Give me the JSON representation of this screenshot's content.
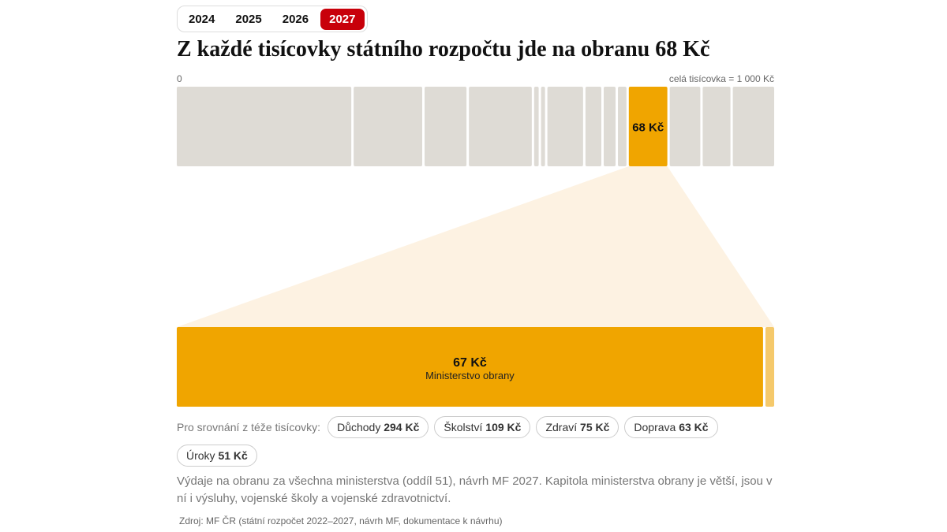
{
  "year_tabs": [
    "2024",
    "2025",
    "2026",
    "2027"
  ],
  "active_year": 3,
  "title": "Z každé tisícovky státního rozpočtu jde na obranu 68 Kč",
  "scale": {
    "start": 0,
    "end_label": "celá tisícovka = 1 000 Kč",
    "max": 1000
  },
  "segments": [
    308,
    121,
    74,
    111,
    8,
    7,
    63,
    28,
    21,
    15,
    68,
    54,
    49,
    73
  ],
  "highlight": {
    "index": 10,
    "label": "68 Kč"
  },
  "detail": {
    "parts": [
      {
        "value": 67,
        "label": "67 Kč",
        "name": "Ministerstvo obrany"
      },
      {
        "value": 1
      }
    ]
  },
  "comparison": {
    "intro": "Pro srovnání z téže tisícovky:",
    "items": [
      {
        "name": "Důchody",
        "amount": "294 Kč"
      },
      {
        "name": "Školství",
        "amount": "109 Kč"
      },
      {
        "name": "Zdraví",
        "amount": "75 Kč"
      },
      {
        "name": "Doprava",
        "amount": "63 Kč"
      },
      {
        "name": "Úroky",
        "amount": "51 Kč"
      }
    ]
  },
  "note": "Výdaje na obranu za všechna ministerstva (oddíl 51), návrh MF 2027. Kapitola ministerstva obrany je větší, jsou v ní i výsluhy, vojenské školy a vojenské zdravotnictví.",
  "source": "Zdroj: MF ČR (státní rozpočet 2022–2027, návrh MF, dokumentace k návrhu)"
}
